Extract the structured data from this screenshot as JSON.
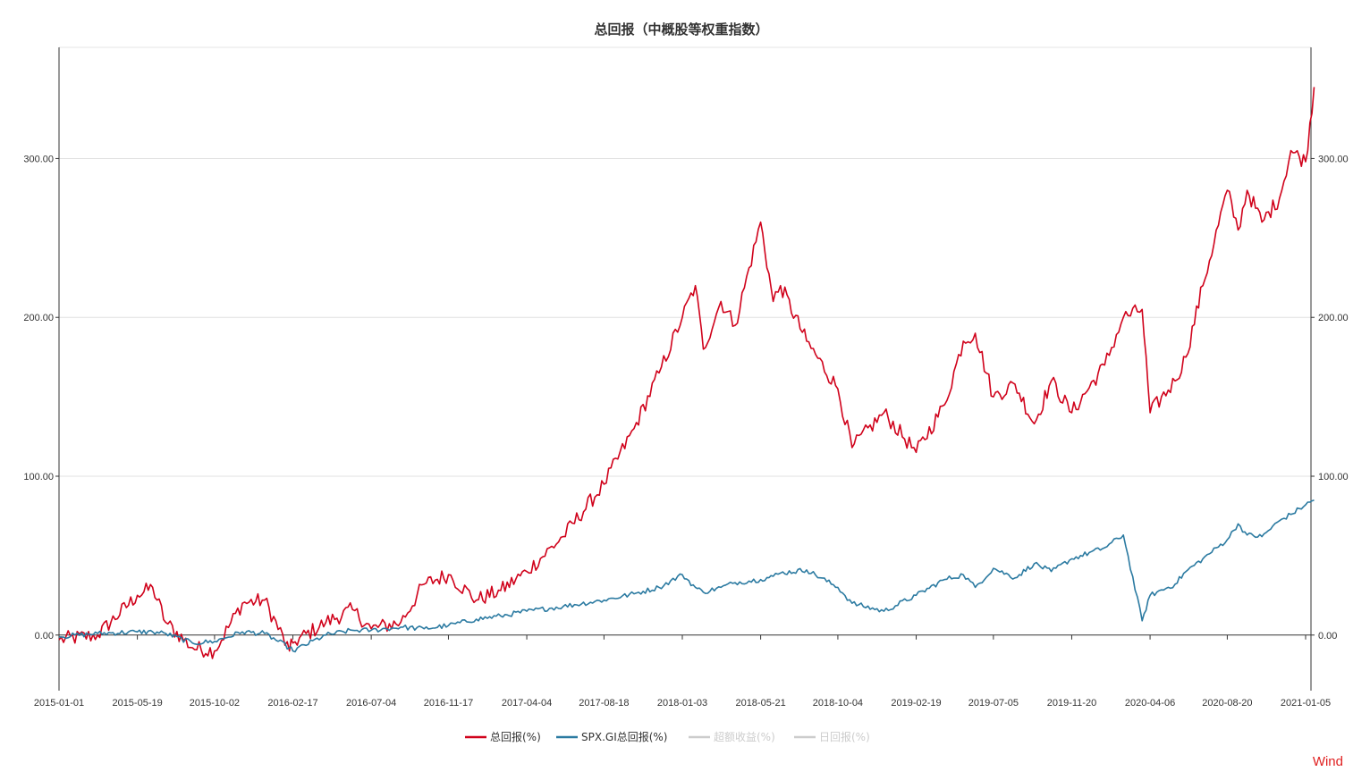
{
  "watermark": "Wind",
  "chart_data": {
    "type": "line",
    "title": "总回报（中概股等权重指数）",
    "xlabel": "",
    "ylabel": "",
    "ylim": [
      -35,
      370
    ],
    "y_ticks": [
      "0.00",
      "100.00",
      "200.00",
      "300.00"
    ],
    "y_tick_values": [
      0,
      100,
      200,
      300
    ],
    "x_ticks": [
      "2015-01-01",
      "2015-05-19",
      "2015-10-02",
      "2016-02-17",
      "2016-07-04",
      "2016-11-17",
      "2017-04-04",
      "2017-08-18",
      "2018-01-03",
      "2018-05-21",
      "2018-10-04",
      "2019-02-19",
      "2019-07-05",
      "2019-11-20",
      "2020-04-06",
      "2020-08-20",
      "2021-01-05"
    ],
    "grid": true,
    "legend_position": "bottom",
    "legend": [
      {
        "name": "总回报(%)",
        "color": "#d0021b",
        "active": true
      },
      {
        "name": "SPX.GI总回报(%)",
        "color": "#2b7aa1",
        "active": true
      },
      {
        "name": "超额收益(%)",
        "color": "#cccccc",
        "active": false
      },
      {
        "name": "日回报(%)",
        "color": "#cccccc",
        "active": false
      }
    ],
    "x": [
      "2015-01-01",
      "2015-03-10",
      "2015-05-19",
      "2015-06-15",
      "2015-07-08",
      "2015-08-24",
      "2015-10-02",
      "2015-11-20",
      "2015-12-29",
      "2016-02-11",
      "2016-02-17",
      "2016-04-15",
      "2016-06-01",
      "2016-07-04",
      "2016-08-25",
      "2016-10-05",
      "2016-11-17",
      "2017-01-05",
      "2017-02-17",
      "2017-04-04",
      "2017-06-07",
      "2017-08-18",
      "2017-10-10",
      "2017-11-23",
      "2018-01-03",
      "2018-01-26",
      "2018-02-09",
      "2018-03-12",
      "2018-04-06",
      "2018-05-21",
      "2018-06-12",
      "2018-06-25",
      "2018-08-10",
      "2018-10-04",
      "2018-10-29",
      "2018-12-24",
      "2019-02-19",
      "2019-04-10",
      "2019-05-13",
      "2019-06-03",
      "2019-07-05",
      "2019-08-12",
      "2019-09-15",
      "2019-10-15",
      "2019-11-20",
      "2020-01-17",
      "2020-02-19",
      "2020-03-23",
      "2020-04-06",
      "2020-05-20",
      "2020-06-08",
      "2020-07-08",
      "2020-08-20",
      "2020-09-08",
      "2020-09-24",
      "2020-10-20",
      "2020-11-20",
      "2020-12-10",
      "2021-01-05",
      "2021-01-20"
    ],
    "series": [
      {
        "name": "总回报(%)",
        "color": "#d0021b",
        "values": [
          -3,
          0,
          25,
          30,
          8,
          -8,
          -10,
          20,
          22,
          -10,
          -5,
          8,
          16,
          4,
          8,
          32,
          38,
          22,
          28,
          40,
          62,
          95,
          130,
          165,
          200,
          220,
          180,
          210,
          195,
          260,
          210,
          220,
          185,
          155,
          118,
          140,
          115,
          145,
          185,
          190,
          150,
          158,
          133,
          160,
          140,
          170,
          200,
          205,
          140,
          160,
          175,
          220,
          280,
          255,
          280,
          260,
          275,
          305,
          298,
          345
        ]
      },
      {
        "name": "SPX.GI总回报(%)",
        "color": "#2b7aa1",
        "values": [
          -1,
          1,
          2,
          2,
          1,
          -5,
          -4,
          2,
          1,
          -8,
          -10,
          0,
          3,
          3,
          5,
          4,
          6,
          10,
          12,
          15,
          18,
          22,
          26,
          30,
          38,
          30,
          27,
          30,
          33,
          35,
          37,
          39,
          41,
          30,
          20,
          15,
          25,
          35,
          38,
          30,
          42,
          36,
          45,
          40,
          48,
          55,
          63,
          9,
          25,
          32,
          40,
          48,
          60,
          70,
          63,
          62,
          72,
          76,
          82,
          85
        ]
      }
    ]
  }
}
